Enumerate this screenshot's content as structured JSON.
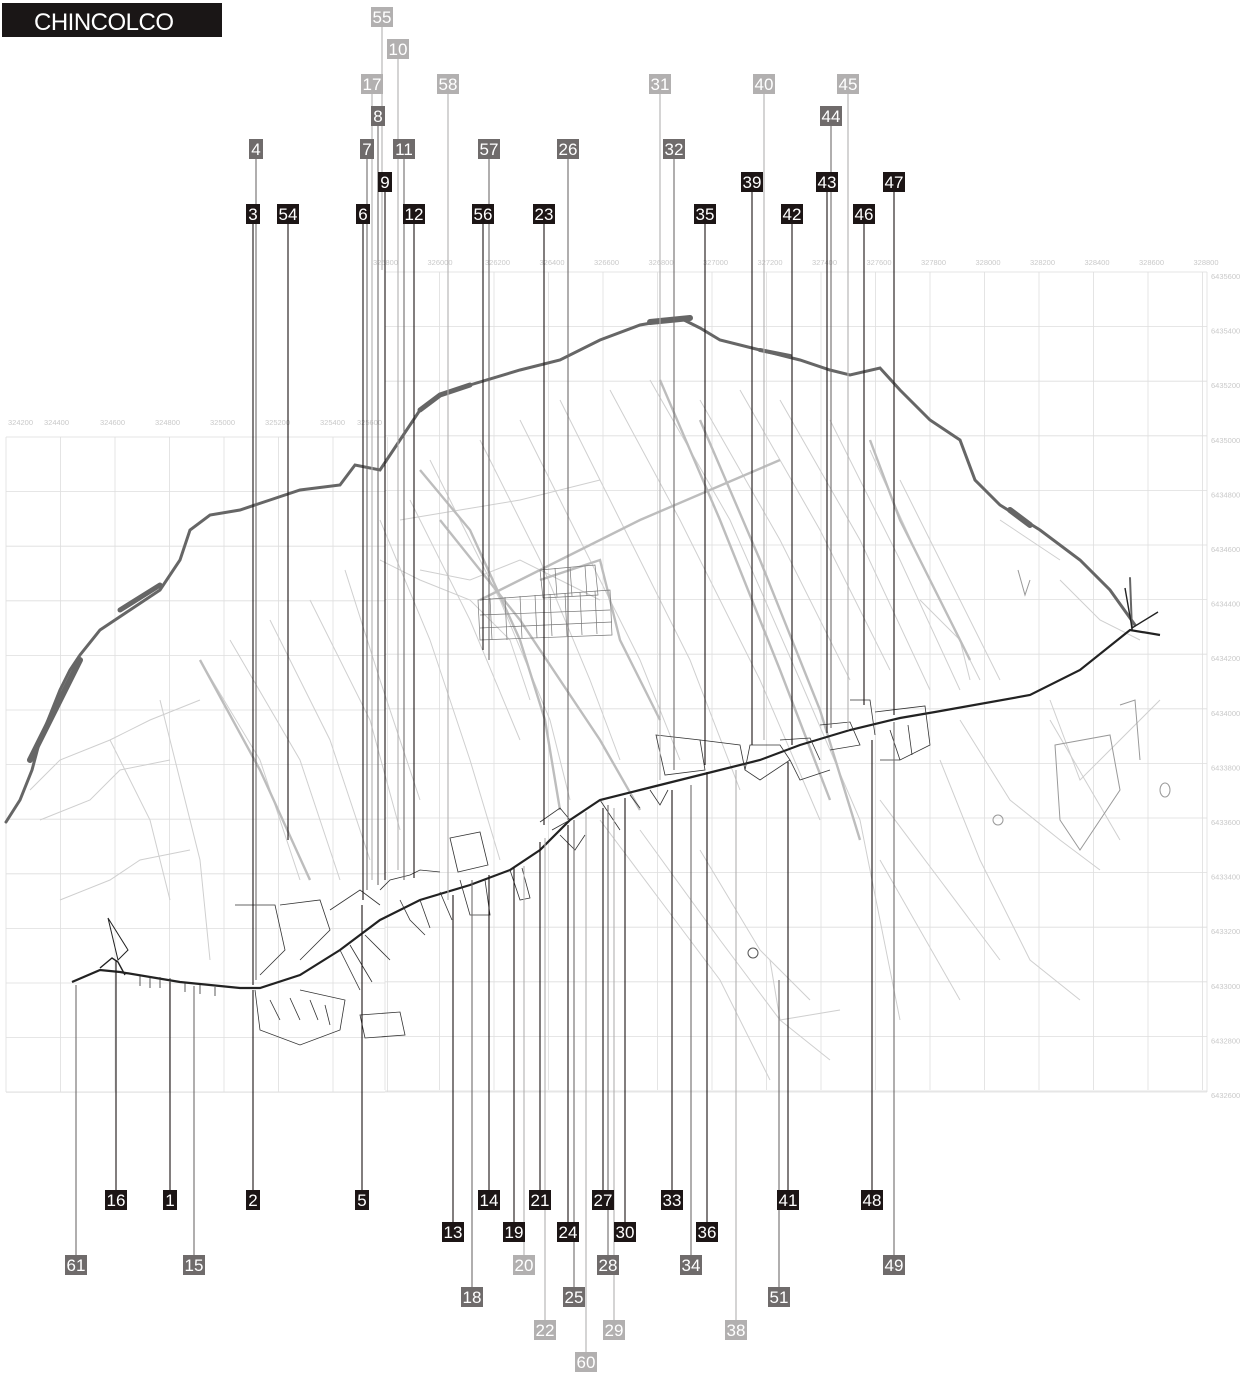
{
  "title": "CHINCOLCO",
  "colors": {
    "black": "#1c1515",
    "dark": "#6f6b6b",
    "light": "#b2b0b0",
    "grid": "#dedede",
    "road": "#c4c4c4",
    "river": "#666666"
  },
  "grid": {
    "x_labels_upper": [
      "325800",
      "326000",
      "326200",
      "326400",
      "326600",
      "326800",
      "327000",
      "327200",
      "327400",
      "327600",
      "327800",
      "328000",
      "328200",
      "328400",
      "328600",
      "328800"
    ],
    "x_labels_lower": [
      "324200",
      "324400",
      "324600",
      "324800",
      "325000",
      "325200",
      "325400",
      "325600"
    ],
    "y_labels": [
      "6435600",
      "6435400",
      "6435200",
      "6435000",
      "6434800",
      "6434600",
      "6434400",
      "6434200",
      "6434000",
      "6433800",
      "6433600",
      "6433400",
      "6433200",
      "6433000",
      "6432800",
      "6432600"
    ]
  },
  "labels": [
    {
      "id": "55",
      "tone": "light"
    },
    {
      "id": "10",
      "tone": "light"
    },
    {
      "id": "17",
      "tone": "light"
    },
    {
      "id": "58",
      "tone": "light"
    },
    {
      "id": "31",
      "tone": "light"
    },
    {
      "id": "40",
      "tone": "light"
    },
    {
      "id": "45",
      "tone": "light"
    },
    {
      "id": "8",
      "tone": "dark"
    },
    {
      "id": "44",
      "tone": "dark"
    },
    {
      "id": "4",
      "tone": "dark"
    },
    {
      "id": "7",
      "tone": "dark"
    },
    {
      "id": "11",
      "tone": "dark"
    },
    {
      "id": "57",
      "tone": "dark"
    },
    {
      "id": "26",
      "tone": "dark"
    },
    {
      "id": "32",
      "tone": "dark"
    },
    {
      "id": "9",
      "tone": "black"
    },
    {
      "id": "39",
      "tone": "black"
    },
    {
      "id": "43",
      "tone": "black"
    },
    {
      "id": "47",
      "tone": "black"
    },
    {
      "id": "3",
      "tone": "black"
    },
    {
      "id": "54",
      "tone": "black"
    },
    {
      "id": "6",
      "tone": "black"
    },
    {
      "id": "12",
      "tone": "black"
    },
    {
      "id": "56",
      "tone": "black"
    },
    {
      "id": "23",
      "tone": "black"
    },
    {
      "id": "35",
      "tone": "black"
    },
    {
      "id": "42",
      "tone": "black"
    },
    {
      "id": "46",
      "tone": "black"
    },
    {
      "id": "16",
      "tone": "black"
    },
    {
      "id": "1",
      "tone": "black"
    },
    {
      "id": "2",
      "tone": "black"
    },
    {
      "id": "5",
      "tone": "black"
    },
    {
      "id": "14",
      "tone": "black"
    },
    {
      "id": "21",
      "tone": "black"
    },
    {
      "id": "27",
      "tone": "black"
    },
    {
      "id": "33",
      "tone": "black"
    },
    {
      "id": "41",
      "tone": "black"
    },
    {
      "id": "48",
      "tone": "black"
    },
    {
      "id": "13",
      "tone": "black"
    },
    {
      "id": "19",
      "tone": "black"
    },
    {
      "id": "24",
      "tone": "black"
    },
    {
      "id": "30",
      "tone": "black"
    },
    {
      "id": "36",
      "tone": "black"
    },
    {
      "id": "61",
      "tone": "dark"
    },
    {
      "id": "15",
      "tone": "dark"
    },
    {
      "id": "20",
      "tone": "light"
    },
    {
      "id": "28",
      "tone": "dark"
    },
    {
      "id": "34",
      "tone": "dark"
    },
    {
      "id": "49",
      "tone": "dark"
    },
    {
      "id": "18",
      "tone": "dark"
    },
    {
      "id": "25",
      "tone": "dark"
    },
    {
      "id": "51",
      "tone": "dark"
    },
    {
      "id": "22",
      "tone": "light"
    },
    {
      "id": "29",
      "tone": "light"
    },
    {
      "id": "38",
      "tone": "light"
    },
    {
      "id": "60",
      "tone": "light"
    }
  ]
}
